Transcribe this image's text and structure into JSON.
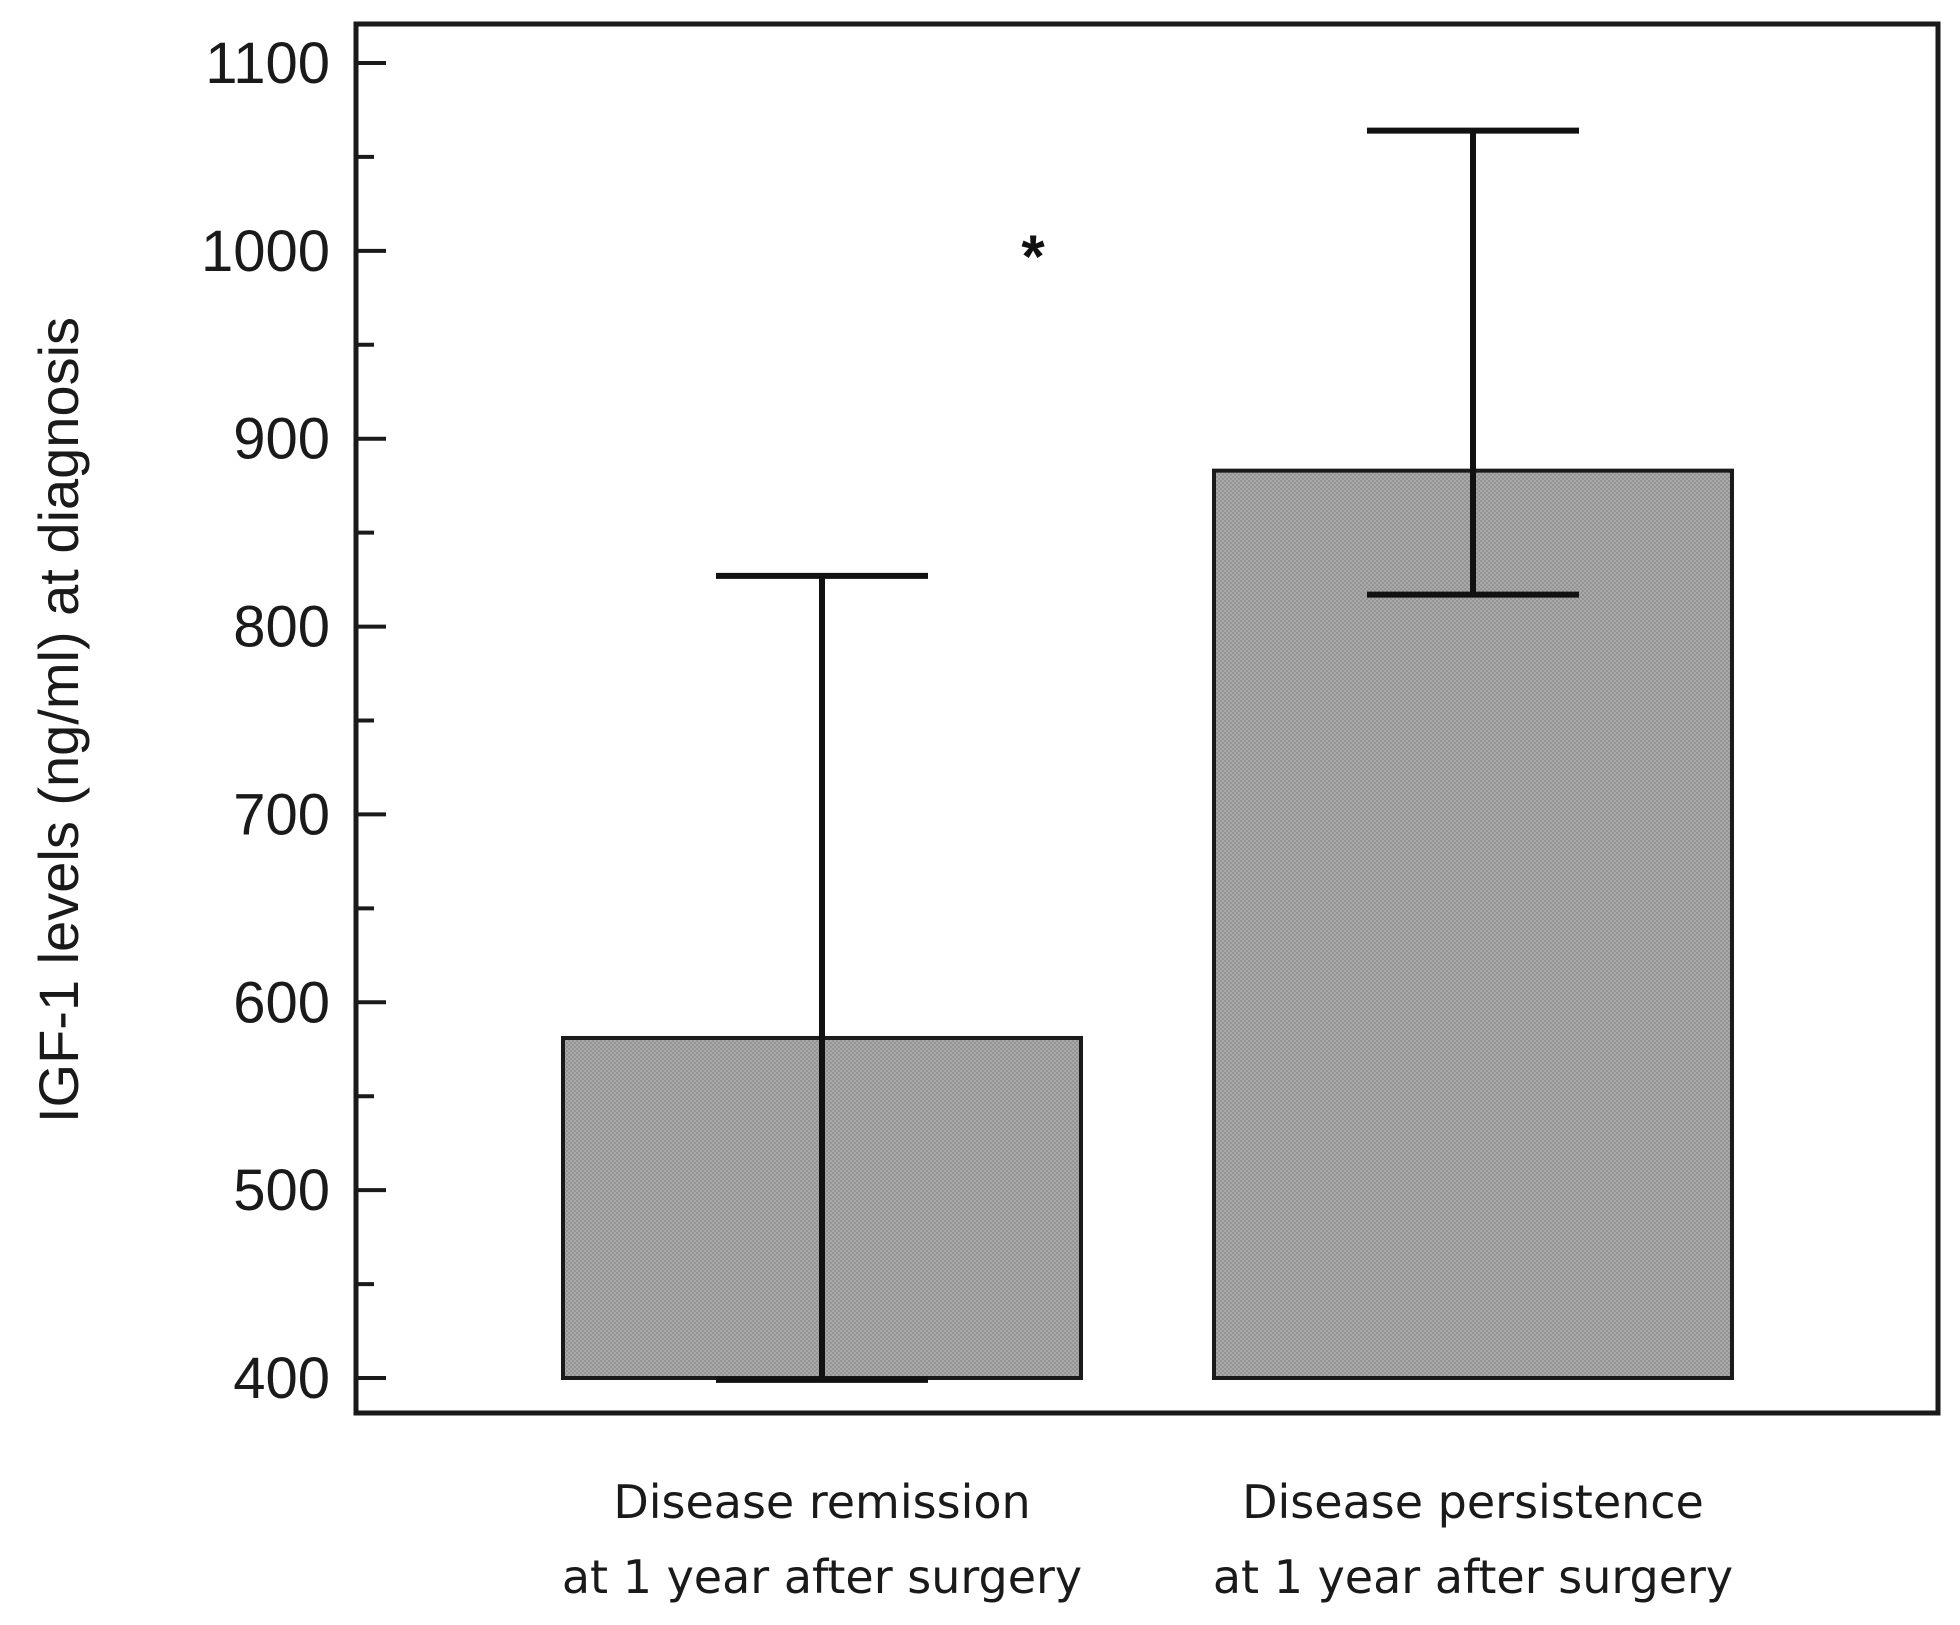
{
  "chart_data": {
    "type": "bar",
    "title": "",
    "xlabel": "",
    "ylabel": "IGF-1 levels (ng/ml) at diagnosis",
    "ylim": [
      400,
      1100
    ],
    "yticks": [
      400,
      500,
      600,
      700,
      800,
      900,
      1000,
      1100
    ],
    "minor_tick_step": 50,
    "grid": false,
    "categories": [
      [
        "Disease remission",
        "at 1 year after surgery"
      ],
      [
        "Disease persistence",
        "at 1 year after surgery"
      ]
    ],
    "values": [
      581,
      883
    ],
    "error_low": [
      399,
      817
    ],
    "error_high": [
      827,
      1064
    ],
    "bar_color": "#a6a6a6",
    "annotations": [
      {
        "text": "*",
        "x_between": [
          0,
          1
        ],
        "y": 1003
      }
    ]
  }
}
